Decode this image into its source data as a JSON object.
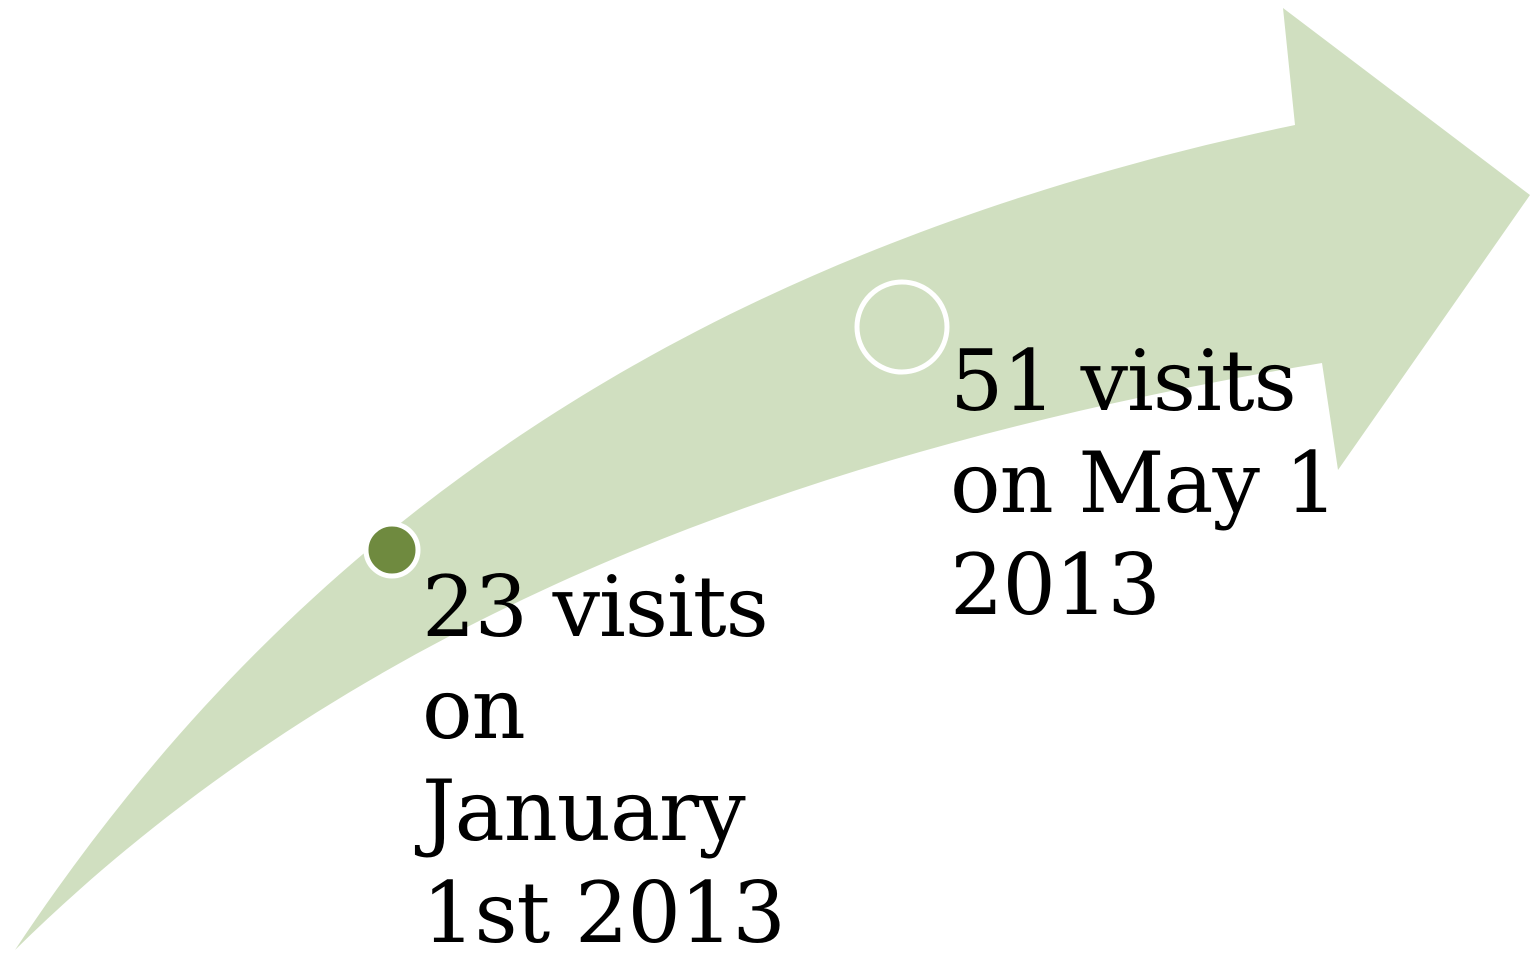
{
  "colors": {
    "arrow_fill": "#d0dfc0",
    "marker_filled": "#6f8a3f",
    "marker_outline": "#ffffff",
    "text": "#000000"
  },
  "milestones": [
    {
      "text": "23 visits\non\nJanuary\n1st 2013",
      "visits": 23,
      "date": "January 1st 2013",
      "marker": "filled"
    },
    {
      "text": "51 visits\non May 1\n2013",
      "visits": 51,
      "date": "May 1 2013",
      "marker": "hollow"
    }
  ]
}
